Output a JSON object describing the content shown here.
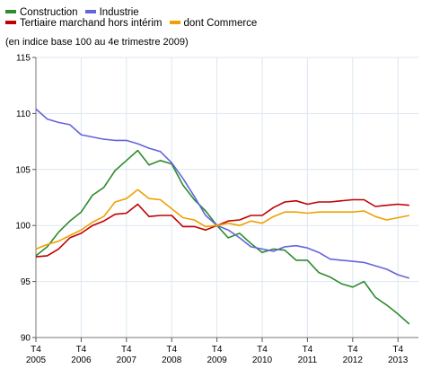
{
  "chart_data": {
    "type": "line",
    "subtitle": "(en indice base 100 au 4e trimestre 2009)",
    "ylim": [
      90,
      115
    ],
    "yticks": [
      "90",
      "95",
      "100",
      "105",
      "110",
      "115"
    ],
    "xticks": [
      {
        "top": "T4",
        "bottom": "2005"
      },
      {
        "top": "T4",
        "bottom": "2006"
      },
      {
        "top": "T4",
        "bottom": "2007"
      },
      {
        "top": "T4",
        "bottom": "2008"
      },
      {
        "top": "T4",
        "bottom": "2009"
      },
      {
        "top": "T4",
        "bottom": "2010"
      },
      {
        "top": "T4",
        "bottom": "2011"
      },
      {
        "top": "T4",
        "bottom": "2012"
      },
      {
        "top": "T4",
        "bottom": "2013"
      }
    ],
    "x_range_quarters": [
      0,
      33.3
    ],
    "grid": true,
    "legend_position": "top-left",
    "series": [
      {
        "name": "Construction",
        "color": "#2e8b2e",
        "values": [
          97.3,
          98.1,
          99.4,
          100.4,
          101.2,
          102.7,
          103.4,
          104.9,
          105.8,
          106.7,
          105.4,
          105.8,
          105.5,
          103.6,
          102.3,
          101.3,
          100.0,
          98.9,
          99.3,
          98.4,
          97.6,
          97.9,
          97.8,
          96.9,
          96.9,
          95.8,
          95.4,
          94.8,
          94.5,
          95.0,
          93.6,
          92.9,
          92.1,
          91.2
        ]
      },
      {
        "name": "Industrie",
        "color": "#6464dc",
        "values": [
          110.4,
          109.5,
          109.2,
          109.0,
          108.1,
          107.9,
          107.7,
          107.6,
          107.6,
          107.3,
          106.9,
          106.6,
          105.6,
          104.2,
          102.6,
          100.9,
          100.0,
          99.6,
          98.9,
          98.1,
          97.9,
          97.7,
          98.1,
          98.2,
          98.0,
          97.6,
          97.0,
          96.9,
          96.8,
          96.7,
          96.4,
          96.1,
          95.6,
          95.3
        ]
      },
      {
        "name": "Tertiaire marchand hors intérim",
        "color": "#c00000",
        "values": [
          97.2,
          97.3,
          97.9,
          98.9,
          99.3,
          100.0,
          100.4,
          101.0,
          101.1,
          101.9,
          100.8,
          100.9,
          100.9,
          99.9,
          99.9,
          99.6,
          100.0,
          100.4,
          100.5,
          100.9,
          100.9,
          101.6,
          102.1,
          102.2,
          101.9,
          102.1,
          102.1,
          102.2,
          102.3,
          102.3,
          101.7,
          101.8,
          101.9,
          101.8
        ]
      },
      {
        "name": "dont Commerce",
        "color": "#f0a000",
        "values": [
          97.9,
          98.3,
          98.6,
          99.1,
          99.6,
          100.3,
          100.8,
          102.1,
          102.4,
          103.2,
          102.4,
          102.3,
          101.5,
          100.7,
          100.5,
          99.9,
          100.0,
          100.2,
          100.0,
          100.4,
          100.2,
          100.8,
          101.2,
          101.2,
          101.1,
          101.2,
          101.2,
          101.2,
          101.2,
          101.3,
          100.8,
          100.5,
          100.7,
          100.9
        ]
      }
    ]
  }
}
